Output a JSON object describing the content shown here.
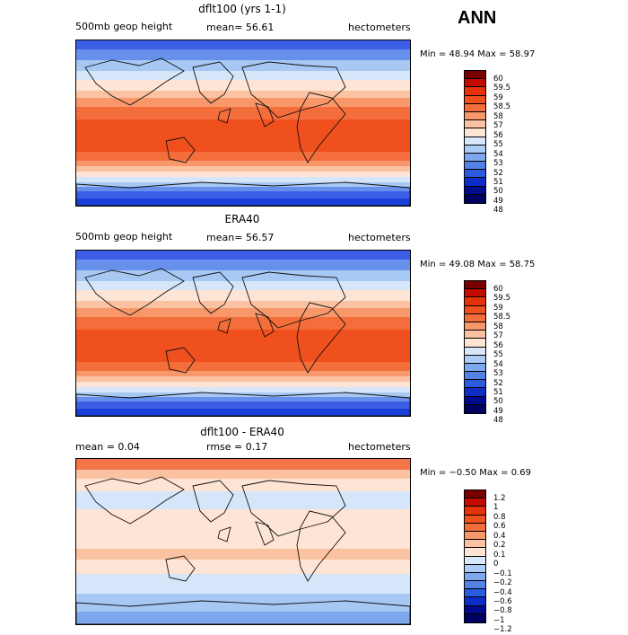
{
  "season_label": "ANN",
  "panels": [
    {
      "title": "dflt100 (yrs 1-1)",
      "field": "500mb geop height",
      "stat": "mean=  56.61",
      "units": "hectometers",
      "minmax": "Min =  48.94 Max =  58.97",
      "colorbar_labels": [
        "60",
        "59.5",
        "59",
        "58.5",
        "58",
        "57",
        "56",
        "55",
        "54",
        "53",
        "52",
        "51",
        "50",
        "49",
        "48"
      ]
    },
    {
      "title": "ERA40",
      "field": "500mb geop height",
      "stat": "mean=  56.57",
      "units": "hectometers",
      "minmax": "Min =  49.08 Max =  58.75",
      "colorbar_labels": [
        "60",
        "59.5",
        "59",
        "58.5",
        "58",
        "57",
        "56",
        "55",
        "54",
        "53",
        "52",
        "51",
        "50",
        "49",
        "48"
      ]
    },
    {
      "title": "dflt100 - ERA40",
      "field": "mean =    0.04",
      "stat": "rmse =    0.17",
      "units": "hectometers",
      "minmax": "Min =  −0.50 Max =   0.69",
      "colorbar_labels": [
        "1.2",
        "1",
        "0.8",
        "0.6",
        "0.4",
        "0.2",
        "0.1",
        "0",
        "−0.1",
        "−0.2",
        "−0.4",
        "−0.6",
        "−0.8",
        "−1",
        "−1.2"
      ]
    }
  ],
  "colors": {
    "height_scale": [
      "#7a0000",
      "#c20c00",
      "#e63208",
      "#f0501e",
      "#f46e3c",
      "#f8986a",
      "#fbc2a2",
      "#fde4d4",
      "#d8e8fa",
      "#acccf5",
      "#7ea8ee",
      "#5282e6",
      "#2a5ade",
      "#0c2ec6",
      "#000a8c",
      "#000060"
    ],
    "diff_scale": [
      "#7a0000",
      "#c20c00",
      "#e63208",
      "#f0501e",
      "#f46e3c",
      "#f8986a",
      "#fbc2a2",
      "#fde4d4",
      "#d8e8fa",
      "#acccf5",
      "#7ea8ee",
      "#5282e6",
      "#2a5ade",
      "#0c2ec6",
      "#000a8c",
      "#000060"
    ]
  }
}
